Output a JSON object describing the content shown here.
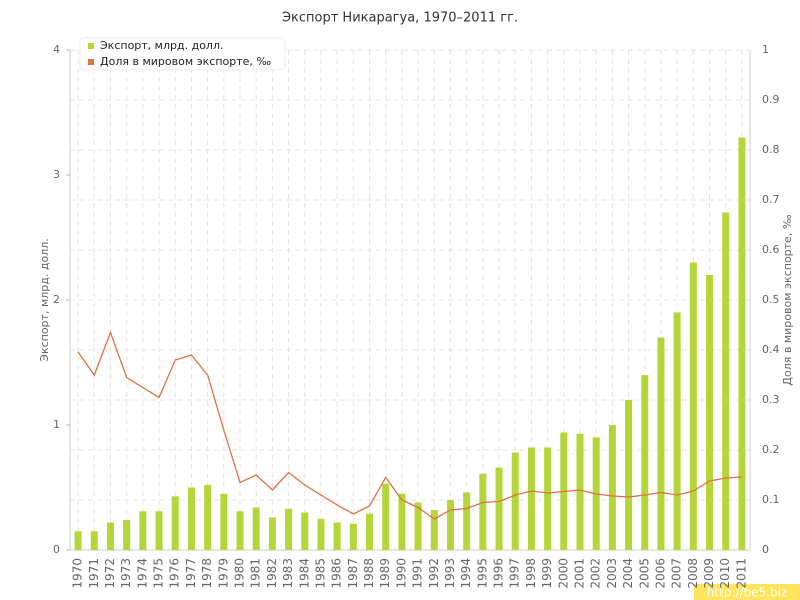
{
  "chart_data": {
    "type": "bar_line",
    "title": "Экспорт Никарагуа, 1970–2011 гг.",
    "y_label": "Экспорт, млрд. долл.",
    "y2_label": "Доля в мировом экспорте, ‰",
    "watermark": "http://be5.biz",
    "categories": [
      "1970",
      "1971",
      "1972",
      "1973",
      "1974",
      "1975",
      "1976",
      "1977",
      "1978",
      "1979",
      "1980",
      "1981",
      "1982",
      "1983",
      "1984",
      "1985",
      "1986",
      "1987",
      "1988",
      "1989",
      "1990",
      "1991",
      "1992",
      "1993",
      "1994",
      "1995",
      "1996",
      "1997",
      "1998",
      "1999",
      "2000",
      "2001",
      "2002",
      "2003",
      "2004",
      "2005",
      "2006",
      "2007",
      "2008",
      "2009",
      "2010",
      "2011"
    ],
    "series": [
      {
        "name": "Экспорт, млрд. долл.",
        "color": "#b5d63a",
        "kind": "bar",
        "values": [
          0.15,
          0.15,
          0.22,
          0.24,
          0.31,
          0.31,
          0.43,
          0.5,
          0.52,
          0.45,
          0.31,
          0.34,
          0.26,
          0.33,
          0.3,
          0.25,
          0.22,
          0.21,
          0.29,
          0.53,
          0.45,
          0.38,
          0.32,
          0.4,
          0.46,
          0.61,
          0.66,
          0.78,
          0.82,
          0.82,
          0.94,
          0.93,
          0.9,
          1.0,
          1.2,
          1.4,
          1.7,
          1.9,
          2.3,
          2.2,
          2.7,
          3.3
        ]
      },
      {
        "name": "Доля в мировом экспорте, ‰",
        "color": "#e07040",
        "kind": "line",
        "axis": "y2",
        "values": [
          0.396,
          0.35,
          0.435,
          0.345,
          0.325,
          0.305,
          0.38,
          0.39,
          0.35,
          0.24,
          0.135,
          0.15,
          0.12,
          0.155,
          0.13,
          0.11,
          0.09,
          0.072,
          0.088,
          0.145,
          0.1,
          0.085,
          0.062,
          0.08,
          0.083,
          0.095,
          0.097,
          0.11,
          0.118,
          0.114,
          0.117,
          0.12,
          0.112,
          0.108,
          0.106,
          0.11,
          0.115,
          0.11,
          0.118,
          0.138,
          0.144,
          0.146
        ]
      }
    ],
    "ylim": [
      0,
      4
    ],
    "yticks": [
      0,
      1,
      2,
      3,
      4
    ],
    "y2lim": [
      0,
      1
    ],
    "y2ticks": [
      0,
      0.1,
      0.2,
      0.3,
      0.4,
      0.5,
      0.6,
      0.7,
      0.8,
      0.9,
      1
    ],
    "grid": true,
    "legend": "top-left"
  }
}
